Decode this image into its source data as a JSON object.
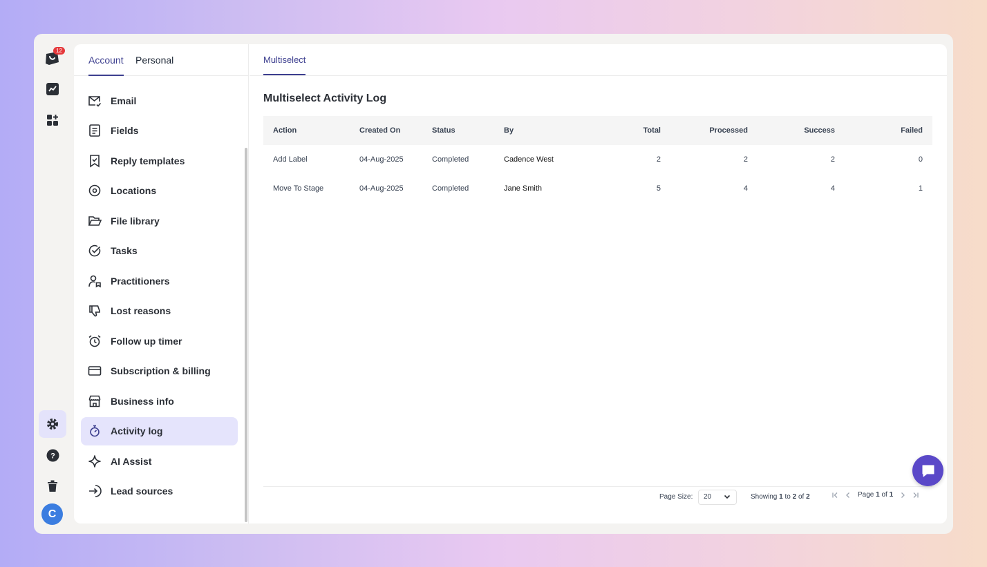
{
  "rail": {
    "notification_count": "12",
    "avatar_initial": "C"
  },
  "left_tabs": [
    "Account",
    "Personal"
  ],
  "menu": [
    {
      "label": "Email",
      "icon": "mail-check-icon"
    },
    {
      "label": "Fields",
      "icon": "form-icon"
    },
    {
      "label": "Reply templates",
      "icon": "bookmark-check-icon"
    },
    {
      "label": "Locations",
      "icon": "location-pin-icon"
    },
    {
      "label": "File library",
      "icon": "folder-open-icon"
    },
    {
      "label": "Tasks",
      "icon": "check-circle-icon"
    },
    {
      "label": "Practitioners",
      "icon": "user-badge-icon"
    },
    {
      "label": "Lost reasons",
      "icon": "thumbs-down-icon"
    },
    {
      "label": "Follow up timer",
      "icon": "alarm-clock-icon"
    },
    {
      "label": "Subscription & billing",
      "icon": "credit-card-icon"
    },
    {
      "label": "Business info",
      "icon": "store-icon"
    },
    {
      "label": "Activity log",
      "icon": "stopwatch-icon",
      "active": true
    },
    {
      "label": "AI Assist",
      "icon": "sparkle-icon"
    },
    {
      "label": "Lead sources",
      "icon": "sign-in-icon"
    }
  ],
  "right_tab": "Multiselect",
  "page_title": "Multiselect Activity Log",
  "table": {
    "headers": [
      "Action",
      "Created On",
      "Status",
      "By",
      "Total",
      "Processed",
      "Success",
      "Failed"
    ],
    "rows": [
      [
        "Add Label",
        "04-Aug-2025",
        "Completed",
        "Cadence West",
        "2",
        "2",
        "2",
        "0"
      ],
      [
        "Move To Stage",
        "04-Aug-2025",
        "Completed",
        "Jane Smith",
        "5",
        "4",
        "4",
        "1"
      ]
    ]
  },
  "footer": {
    "page_size_label": "Page Size:",
    "page_size_value": "20",
    "showing_prefix": "Showing",
    "showing_from": "1",
    "showing_to_word": "to",
    "showing_to": "2",
    "showing_of_word": "of",
    "showing_total": "2",
    "page_word": "Page",
    "page_current": "1",
    "page_of_word": "of",
    "page_total": "1"
  },
  "colors": {
    "accent": "#3d3f8f",
    "active_bg": "#e5e4fc",
    "fab": "#5a48c8",
    "badge": "#e5383b",
    "avatar": "#3b7de0"
  }
}
